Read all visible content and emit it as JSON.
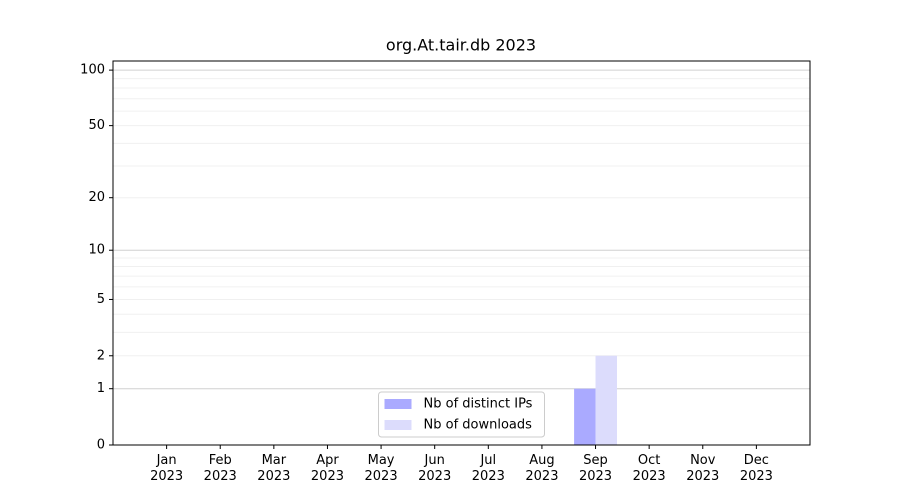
{
  "chart_data": {
    "type": "bar",
    "title": "org.At.tair.db 2023",
    "categories": [
      "Jan\n2023",
      "Feb\n2023",
      "Mar\n2023",
      "Apr\n2023",
      "May\n2023",
      "Jun\n2023",
      "Jul\n2023",
      "Aug\n2023",
      "Sep\n2023",
      "Oct\n2023",
      "Nov\n2023",
      "Dec\n2023"
    ],
    "series": [
      {
        "name": "Nb of distinct IPs",
        "color": "#aaaaff",
        "values": [
          0,
          0,
          0,
          0,
          0,
          0,
          0,
          0,
          1,
          0,
          0,
          0
        ]
      },
      {
        "name": "Nb of downloads",
        "color": "#dcdcfc",
        "values": [
          0,
          0,
          0,
          0,
          0,
          0,
          0,
          0,
          2,
          0,
          0,
          0
        ]
      }
    ],
    "yscale": "log1p",
    "ylim": [
      0,
      112
    ],
    "yticks": [
      0,
      1,
      2,
      5,
      10,
      20,
      50,
      100
    ],
    "major_grid": [
      1,
      10,
      100
    ],
    "minor_grid": [
      2,
      3,
      4,
      5,
      6,
      7,
      8,
      9,
      20,
      30,
      40,
      50,
      60,
      70,
      80,
      90
    ],
    "legend": "lower center"
  }
}
